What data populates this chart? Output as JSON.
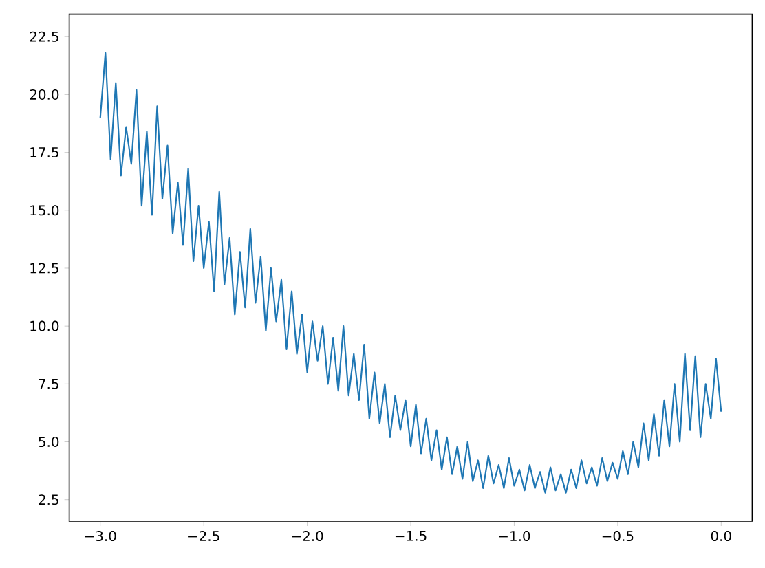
{
  "chart_data": {
    "type": "line",
    "x": [
      -3.0,
      -2.975,
      -2.95,
      -2.925,
      -2.9,
      -2.875,
      -2.85,
      -2.825,
      -2.8,
      -2.775,
      -2.75,
      -2.725,
      -2.7,
      -2.675,
      -2.65,
      -2.625,
      -2.6,
      -2.575,
      -2.55,
      -2.525,
      -2.5,
      -2.475,
      -2.45,
      -2.425,
      -2.4,
      -2.375,
      -2.35,
      -2.325,
      -2.3,
      -2.275,
      -2.25,
      -2.225,
      -2.2,
      -2.175,
      -2.15,
      -2.125,
      -2.1,
      -2.075,
      -2.05,
      -2.025,
      -2.0,
      -1.975,
      -1.95,
      -1.925,
      -1.9,
      -1.875,
      -1.85,
      -1.825,
      -1.8,
      -1.775,
      -1.75,
      -1.725,
      -1.7,
      -1.675,
      -1.65,
      -1.625,
      -1.6,
      -1.575,
      -1.55,
      -1.525,
      -1.5,
      -1.475,
      -1.45,
      -1.425,
      -1.4,
      -1.375,
      -1.35,
      -1.325,
      -1.3,
      -1.275,
      -1.25,
      -1.225,
      -1.2,
      -1.175,
      -1.15,
      -1.125,
      -1.1,
      -1.075,
      -1.05,
      -1.025,
      -1.0,
      -0.975,
      -0.95,
      -0.925,
      -0.9,
      -0.875,
      -0.85,
      -0.825,
      -0.8,
      -0.775,
      -0.75,
      -0.725,
      -0.7,
      -0.675,
      -0.65,
      -0.625,
      -0.6,
      -0.575,
      -0.55,
      -0.525,
      -0.5,
      -0.475,
      -0.45,
      -0.425,
      -0.4,
      -0.375,
      -0.35,
      -0.325,
      -0.3,
      -0.275,
      -0.25,
      -0.225,
      -0.2,
      -0.175,
      -0.15,
      -0.125,
      -0.1,
      -0.075,
      -0.05,
      -0.025,
      0.0
    ],
    "series": [
      {
        "color": "#1f77b4",
        "values": [
          19.0,
          21.8,
          17.2,
          20.5,
          16.5,
          18.6,
          17.0,
          20.2,
          15.2,
          18.4,
          14.8,
          19.5,
          15.5,
          17.8,
          14.0,
          16.2,
          13.5,
          16.8,
          12.8,
          15.2,
          12.5,
          14.5,
          11.5,
          15.8,
          11.8,
          13.8,
          10.5,
          13.2,
          10.8,
          14.2,
          11.0,
          13.0,
          9.8,
          12.5,
          10.2,
          12.0,
          9.0,
          11.5,
          8.8,
          10.5,
          8.0,
          10.2,
          8.5,
          10.0,
          7.5,
          9.5,
          7.2,
          10.0,
          7.0,
          8.8,
          6.8,
          9.2,
          6.0,
          8.0,
          5.8,
          7.5,
          5.2,
          7.0,
          5.5,
          6.8,
          4.8,
          6.6,
          4.5,
          6.0,
          4.2,
          5.5,
          3.8,
          5.2,
          3.6,
          4.8,
          3.4,
          5.0,
          3.3,
          4.2,
          3.0,
          4.4,
          3.2,
          4.0,
          3.0,
          4.3,
          3.1,
          3.8,
          2.9,
          4.0,
          3.0,
          3.7,
          2.8,
          3.9,
          2.9,
          3.6,
          2.8,
          3.8,
          3.0,
          4.2,
          3.2,
          3.9,
          3.1,
          4.3,
          3.3,
          4.1,
          3.4,
          4.6,
          3.6,
          5.0,
          3.9,
          5.8,
          4.2,
          6.2,
          4.4,
          6.8,
          4.8,
          7.5,
          5.0,
          8.8,
          5.5,
          8.7,
          5.2,
          7.5,
          6.0,
          8.6,
          6.3
        ]
      }
    ],
    "xlim": [
      -3.15,
      0.15
    ],
    "ylim": [
      1.57,
      23.47
    ],
    "xticks": [
      {
        "value": -3.0,
        "label": "−3.0"
      },
      {
        "value": -2.5,
        "label": "−2.5"
      },
      {
        "value": -2.0,
        "label": "−2.0"
      },
      {
        "value": -1.5,
        "label": "−1.5"
      },
      {
        "value": -1.0,
        "label": "−1.0"
      },
      {
        "value": -0.5,
        "label": "−0.5"
      },
      {
        "value": 0.0,
        "label": "0.0"
      }
    ],
    "yticks": [
      {
        "value": 2.5,
        "label": "2.5"
      },
      {
        "value": 5.0,
        "label": "5.0"
      },
      {
        "value": 7.5,
        "label": "7.5"
      },
      {
        "value": 10.0,
        "label": "10.0"
      },
      {
        "value": 12.5,
        "label": "12.5"
      },
      {
        "value": 15.0,
        "label": "15.0"
      },
      {
        "value": 17.5,
        "label": "17.5"
      },
      {
        "value": 20.0,
        "label": "20.0"
      },
      {
        "value": 22.5,
        "label": "22.5"
      }
    ],
    "grid": false
  }
}
